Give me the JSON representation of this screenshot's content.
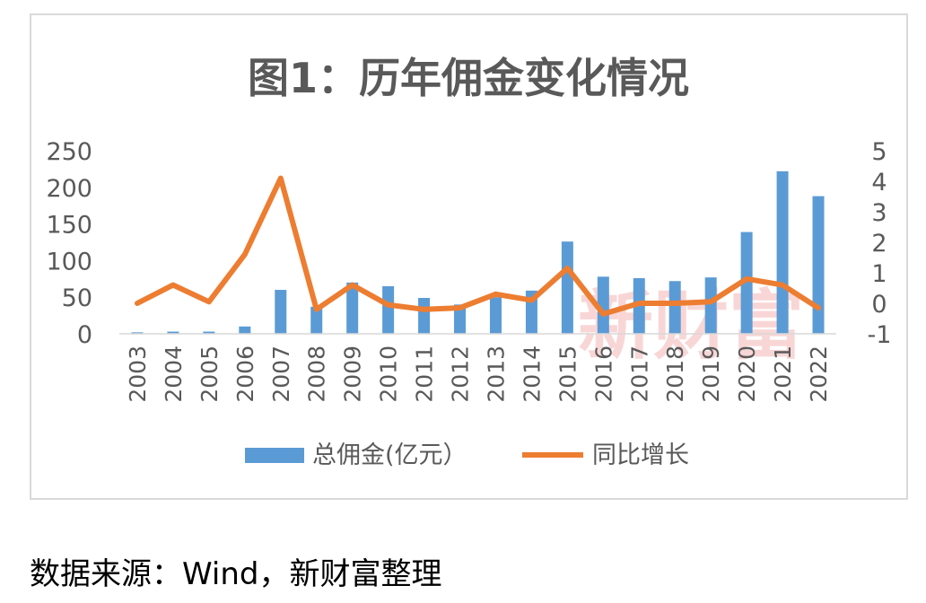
{
  "chart_data": {
    "type": "bar",
    "title": "图1：历年佣金变化情况",
    "categories": [
      "2003",
      "2004",
      "2005",
      "2006",
      "2007",
      "2008",
      "2009",
      "2010",
      "2011",
      "2012",
      "2013",
      "2014",
      "2015",
      "2016",
      "2017",
      "2018",
      "2019",
      "2020",
      "2021",
      "2022"
    ],
    "series": [
      {
        "name": "总佣金(亿元）",
        "type": "bar",
        "axis": "left",
        "values": [
          2,
          3,
          3,
          10,
          60,
          37,
          70,
          65,
          49,
          40,
          50,
          59,
          126,
          78,
          76,
          72,
          77,
          139,
          222,
          188
        ]
      },
      {
        "name": "同比增长",
        "type": "line",
        "axis": "right",
        "values": [
          0.0,
          0.6,
          0.05,
          1.6,
          4.1,
          -0.2,
          0.6,
          -0.05,
          -0.2,
          -0.15,
          0.3,
          0.1,
          1.15,
          -0.35,
          0.0,
          0.0,
          0.05,
          0.8,
          0.6,
          -0.15
        ]
      }
    ],
    "ylim_left": [
      0,
      250
    ],
    "yticks_left": [
      0,
      50,
      100,
      150,
      200,
      250
    ],
    "ylim_right": [
      -1,
      5
    ],
    "yticks_right": [
      -1,
      0,
      1,
      2,
      3,
      4,
      5
    ],
    "grid": false,
    "legend_position": "bottom",
    "colors": {
      "bar": "#5b9bd5",
      "line": "#ed7d31",
      "title": "#595959",
      "axis_text": "#595959"
    },
    "watermark": "新财富"
  },
  "source_note": "数据来源：Wind，新财富整理"
}
